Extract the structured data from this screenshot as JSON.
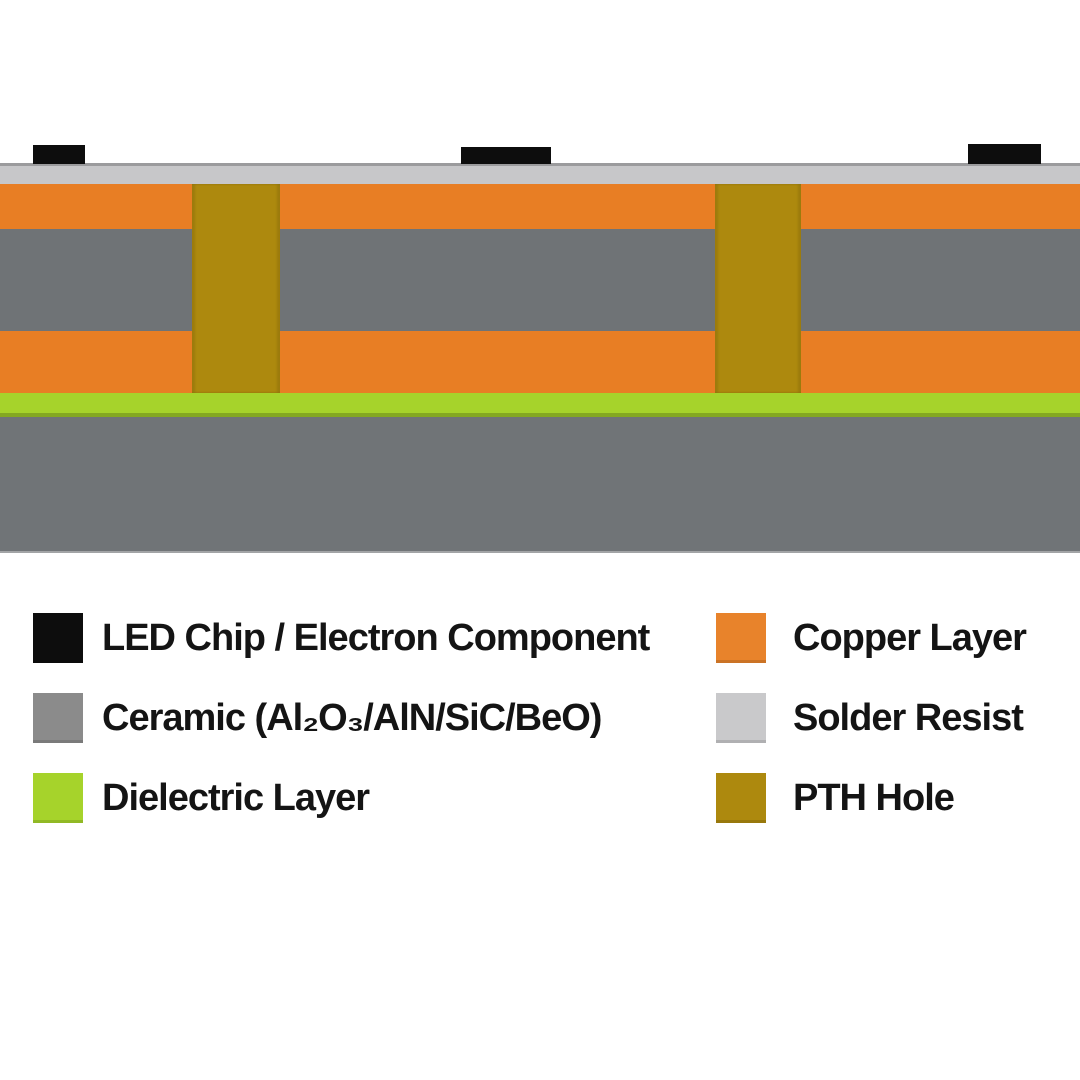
{
  "diagram": {
    "title_hint": "Ceramic PCB cross-section",
    "chips": {
      "color": "#0d0d0d"
    },
    "layers": {
      "solder_resist": "#c7c7c9",
      "copper": "#e87e24",
      "ceramic": "#6f7376",
      "dielectric": "#a6d32b",
      "base": "#707477"
    },
    "pth": {
      "color": "#ad890e"
    }
  },
  "legend": {
    "left": [
      {
        "label": "LED Chip / Electron Component",
        "color": "#0d0d0d"
      },
      {
        "label": "Ceramic (Al₂O₃/AlN/SiC/BeO)",
        "color": "#8b8b8b"
      },
      {
        "label": "Dielectric Layer",
        "color": "#a6d32b"
      }
    ],
    "right": [
      {
        "label": "Copper Layer",
        "color": "#e8832b"
      },
      {
        "label": "Solder Resist",
        "color": "#c9c9cb"
      },
      {
        "label": "PTH Hole",
        "color": "#ad890e"
      }
    ]
  }
}
